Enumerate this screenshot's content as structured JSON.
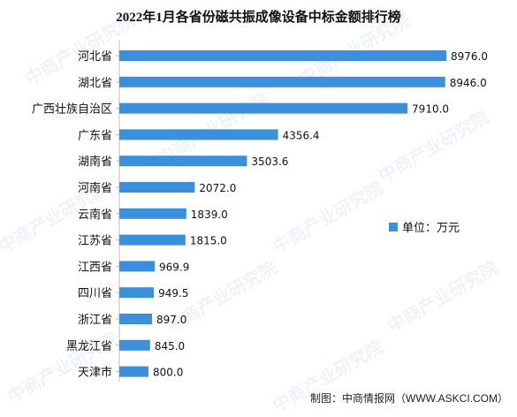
{
  "watermark_text": "中商产业研究院",
  "source": "制图：中商情报网（WWW.ASKCI.COM）",
  "chart_data": {
    "type": "bar",
    "orientation": "horizontal",
    "title": "2022年1月各省份磁共振成像设备中标金额排行榜",
    "categories": [
      "河北省",
      "湖北省",
      "广西壮族自治区",
      "广东省",
      "湖南省",
      "河南省",
      "云南省",
      "江苏省",
      "江西省",
      "四川省",
      "浙江省",
      "黑龙江省",
      "天津市"
    ],
    "series": [
      {
        "name": "单位：万元",
        "values": [
          8976.0,
          8946.0,
          7910.0,
          4356.4,
          3503.6,
          2072.0,
          1839.0,
          1815.0,
          969.9,
          949.5,
          897.0,
          845.0,
          800.0
        ],
        "labels": [
          "8976.0",
          "8946.0",
          "7910.0",
          "4356.4",
          "3503.6",
          "2072.0",
          "1839.0",
          "1815.0",
          "969.9",
          "949.5",
          "897.0",
          "845.0",
          "800.0"
        ],
        "color": "#3b8fdb"
      }
    ],
    "xlim": [
      0,
      8976
    ],
    "grid": false,
    "legend_position": "right"
  }
}
